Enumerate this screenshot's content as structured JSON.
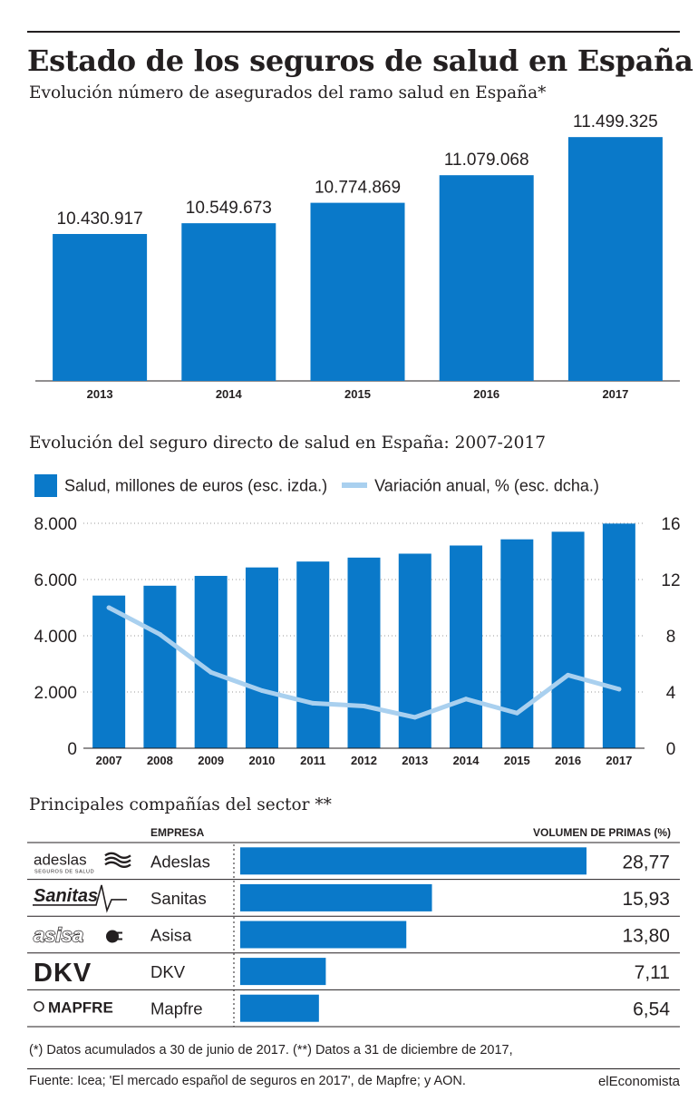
{
  "header": {
    "title": "Estado de los seguros de salud en España",
    "subtitle": "Evolución número de asegurados del ramo salud en España*"
  },
  "colors": {
    "bar": "#0a79c9",
    "line": "#a9d0ef",
    "grid": "#9a9a9a",
    "text": "#231f20"
  },
  "chart_data": [
    {
      "type": "bar",
      "title": "Evolución número de asegurados del ramo salud en España*",
      "categories": [
        "2013",
        "2014",
        "2015",
        "2016",
        "2017"
      ],
      "values": [
        10430917,
        10549673,
        10774869,
        11079068,
        11499325
      ],
      "value_labels": [
        "10.430.917",
        "10.549.673",
        "10.774.869",
        "11.079.068",
        "11.499.325"
      ]
    },
    {
      "type": "bar+line",
      "title": "Evolución del seguro directo de salud en España: 2007-2017",
      "categories": [
        "2007",
        "2008",
        "2009",
        "2010",
        "2011",
        "2012",
        "2013",
        "2014",
        "2015",
        "2016",
        "2017"
      ],
      "series": [
        {
          "name": "Salud, millones de euros (esc. izda.)",
          "type": "bar",
          "axis": "left",
          "values": [
            5430,
            5780,
            6130,
            6430,
            6640,
            6780,
            6920,
            7210,
            7430,
            7700,
            7990
          ]
        },
        {
          "name": "Variación anual, % (esc. dcha.)",
          "type": "line",
          "axis": "right",
          "values": [
            10.0,
            8.1,
            5.4,
            4.1,
            3.2,
            3.0,
            2.2,
            3.5,
            2.5,
            5.2,
            4.2
          ]
        }
      ],
      "y_left": {
        "range": [
          0,
          8000
        ],
        "ticks": [
          "0",
          "2.000",
          "4.000",
          "6.000",
          "8.000"
        ]
      },
      "y_right": {
        "range": [
          0,
          16
        ],
        "ticks": [
          "0",
          "4",
          "8",
          "12",
          "16"
        ]
      },
      "grid": true,
      "legend": "top"
    },
    {
      "type": "bar",
      "orientation": "horizontal",
      "title": "Principales compañías del sector **",
      "column_headers": {
        "company": "EMPRESA",
        "value": "VOLUMEN DE PRIMAS  (%)"
      },
      "categories": [
        "Adeslas",
        "Sanitas",
        "Asisa",
        "DKV",
        "Mapfre"
      ],
      "values": [
        28.77,
        15.93,
        13.8,
        7.11,
        6.54
      ],
      "value_labels": [
        "28,77",
        "15,93",
        "13,80",
        "7,11",
        "6,54"
      ],
      "logos": [
        {
          "text": "adeslas",
          "tagline": "SEGUROS DE SALUD",
          "icon": "wave-icon"
        },
        {
          "text": "Sanitas",
          "icon": "heartbeat-icon"
        },
        {
          "text": "asisa",
          "icon": "plug-icon"
        },
        {
          "text": "DKV"
        },
        {
          "text": "MAPFRE",
          "icon": "circle-icon"
        }
      ]
    }
  ],
  "notes": {
    "footnote": "(*) Datos acumulados a 30 de junio de 2017. (**) Datos a 31 de diciembre de 2017,",
    "source": "Fuente: Icea; 'El mercado español de seguros en 2017', de Mapfre; y AON.",
    "brand": "elEconomista"
  }
}
